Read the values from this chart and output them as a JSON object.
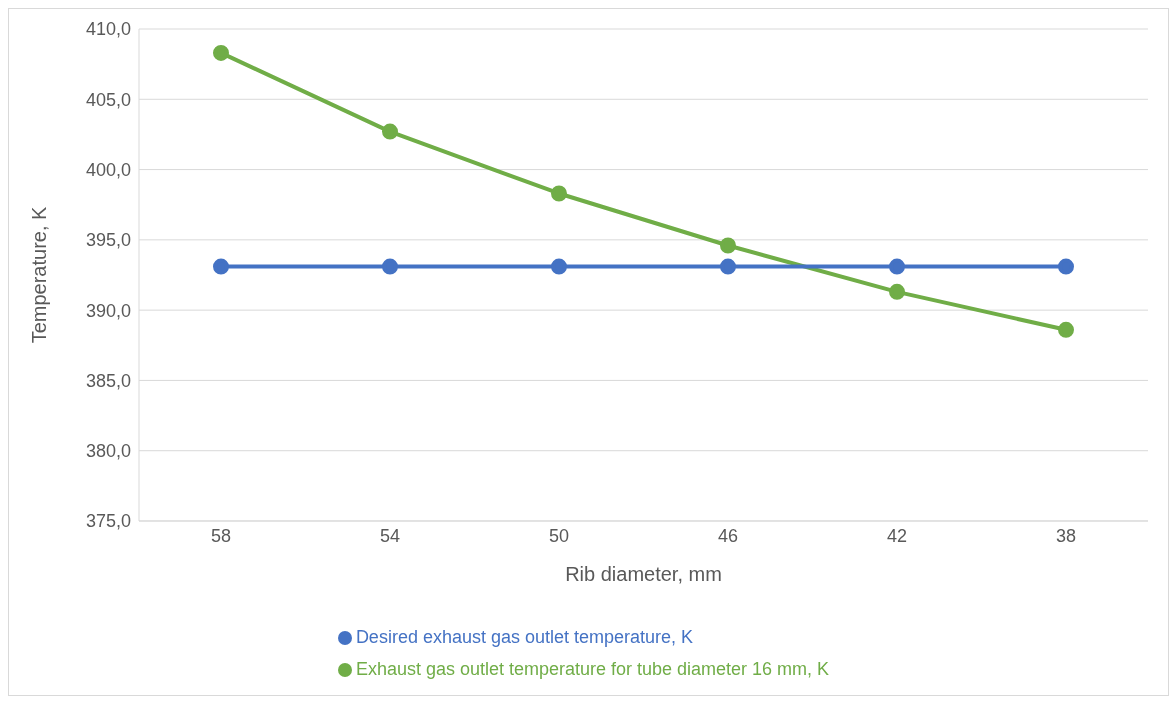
{
  "chart_data": {
    "type": "line",
    "xlabel": "Rib diameter, mm",
    "ylabel": "Temperature, K",
    "categories": [
      "58",
      "54",
      "50",
      "46",
      "42",
      "38"
    ],
    "series": [
      {
        "name": "Exhaust gas outlet temperature for tube diameter 16 mm, K",
        "color": "#70ad47",
        "values": [
          408.3,
          402.7,
          398.3,
          394.6,
          391.3,
          388.6
        ]
      },
      {
        "name": "Desired exhaust gas outlet temperature, K",
        "color": "#4472c4",
        "values": [
          393.1,
          393.1,
          393.1,
          393.1,
          393.1,
          393.1
        ]
      }
    ],
    "ylim": [
      375,
      410
    ],
    "yticks": [
      {
        "value": 375,
        "label": "375,0"
      },
      {
        "value": 380,
        "label": "380,0"
      },
      {
        "value": 385,
        "label": "385,0"
      },
      {
        "value": 390,
        "label": "390,0"
      },
      {
        "value": 395,
        "label": "395,0"
      },
      {
        "value": 400,
        "label": "400,0"
      },
      {
        "value": 405,
        "label": "405,0"
      },
      {
        "value": 410,
        "label": "410,0"
      }
    ],
    "grid": "y",
    "legend": "bottom",
    "marker": "circle",
    "line_style": "solid"
  }
}
